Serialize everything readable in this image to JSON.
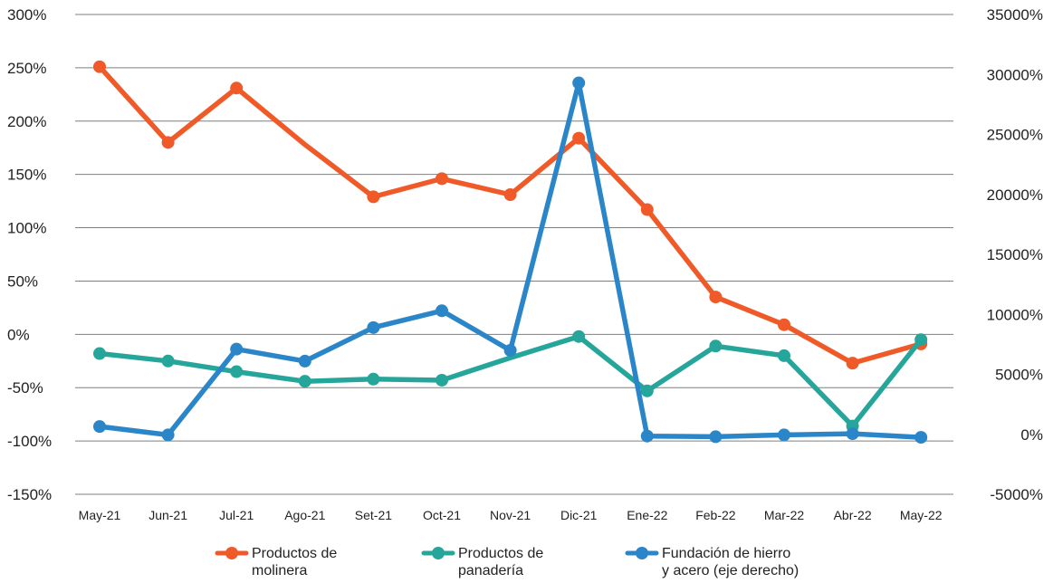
{
  "chart_data": {
    "type": "line",
    "title": "",
    "xlabel": "",
    "ylabel": "",
    "categories": [
      "May-21",
      "Jun-21",
      "Jul-21",
      "Ago-21",
      "Set-21",
      "Oct-21",
      "Nov-21",
      "Dic-21",
      "Ene-22",
      "Feb-22",
      "Mar-22",
      "Abr-22",
      "May-22"
    ],
    "y_left": {
      "range": [
        -150,
        300
      ],
      "ticks": [
        300,
        250,
        200,
        150,
        100,
        50,
        0,
        -50,
        -100,
        -150
      ],
      "tick_labels": [
        "300%",
        "250%",
        "200%",
        "150%",
        "100%",
        "50%",
        "0%",
        "-50%",
        "-100%",
        "-150%"
      ]
    },
    "y_right": {
      "range": [
        -5000,
        35000
      ],
      "ticks": [
        35000,
        30000,
        25000,
        20000,
        15000,
        10000,
        5000,
        0,
        -5000
      ],
      "tick_labels": [
        "35000%",
        "30000%",
        "25000%",
        "20000%",
        "15000%",
        "10000%",
        "5000%",
        "0%",
        "-5000%"
      ]
    },
    "grid": true,
    "legend_position": "bottom",
    "series": [
      {
        "name_lines": [
          "Productos de",
          "molinera"
        ],
        "axis": "left",
        "color": "#f05a28",
        "values": [
          251,
          180,
          231,
          null,
          129,
          146,
          131,
          184,
          117,
          35,
          9,
          -27,
          -9
        ],
        "markers": [
          true,
          true,
          true,
          false,
          true,
          true,
          true,
          true,
          true,
          true,
          true,
          true,
          true
        ],
        "line_through": [
          {
            "from": 2,
            "to": 4,
            "value_3": 178
          }
        ]
      },
      {
        "name_lines": [
          "Productos de",
          "panadería"
        ],
        "axis": "left",
        "color": "#26a69a",
        "values": [
          -18,
          -25,
          -35,
          -44,
          -42,
          -43,
          null,
          -2,
          -53,
          -11,
          -20,
          -86,
          -5
        ],
        "markers": [
          true,
          true,
          true,
          true,
          true,
          true,
          false,
          true,
          true,
          true,
          true,
          true,
          true
        ],
        "line_through": [
          {
            "from": 5,
            "to": 7,
            "value_6": -22
          }
        ]
      },
      {
        "name_lines": [
          "Fundación de hierro",
          "y acero (eje derecho)"
        ],
        "axis": "right",
        "color": "#2a86c8",
        "values": [
          650,
          -50,
          7100,
          6100,
          8900,
          10300,
          7000,
          29300,
          -150,
          -200,
          -50,
          50,
          -250
        ],
        "markers": [
          true,
          true,
          true,
          true,
          true,
          true,
          true,
          true,
          true,
          true,
          true,
          true,
          true
        ]
      }
    ]
  }
}
